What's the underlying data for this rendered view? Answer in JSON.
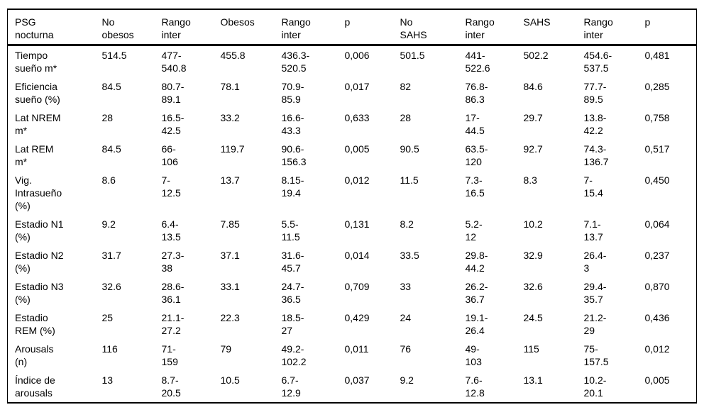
{
  "colors": {
    "background": "#ffffff",
    "text": "#000000",
    "border": "#000000"
  },
  "table": {
    "name": "PSG nocturna",
    "columns": [
      "PSG\nnocturna",
      "No\nobesos",
      "Rango\ninter",
      "Obesos",
      "Rango\ninter",
      "p",
      "No\nSAHS",
      "Rango\ninter",
      "SAHS",
      "Rango\ninter",
      "p"
    ],
    "rows": [
      [
        "Tiempo\nsueño m*",
        "514.5",
        "477-\n540.8",
        "455.8",
        "436.3-\n520.5",
        "0,006",
        "501.5",
        "441-\n522.6",
        "502.2",
        "454.6-\n537.5",
        "0,481"
      ],
      [
        "Eficiencia\nsueño (%)",
        "84.5",
        "80.7-\n89.1",
        "78.1",
        "70.9-\n85.9",
        "0,017",
        "82",
        "76.8-\n86.3",
        "84.6",
        "77.7-\n89.5",
        "0,285"
      ],
      [
        "Lat NREM\nm*",
        "28",
        "16.5-\n42.5",
        "33.2",
        "16.6-\n43.3",
        "0,633",
        "28",
        "17-\n44.5",
        "29.7",
        "13.8-\n42.2",
        "0,758"
      ],
      [
        "Lat REM\nm*",
        "84.5",
        "66-\n106",
        "119.7",
        "90.6-\n156.3",
        "0,005",
        "90.5",
        "63.5-\n120",
        "92.7",
        "74.3-\n136.7",
        "0,517"
      ],
      [
        "Vig.\nIntrasueño\n(%)",
        "8.6",
        "7-\n12.5",
        "13.7",
        "8.15-\n19.4",
        "0,012",
        "11.5",
        "7.3-\n16.5",
        "8.3",
        "7-\n15.4",
        "0,450"
      ],
      [
        "Estadio N1\n(%)",
        "9.2",
        "6.4-\n13.5",
        "7.85",
        "5.5-\n11.5",
        "0,131",
        "8.2",
        "5.2-\n12",
        "10.2",
        "7.1-\n13.7",
        "0,064"
      ],
      [
        "Estadio N2\n(%)",
        "31.7",
        "27.3-\n38",
        "37.1",
        "31.6-\n45.7",
        "0,014",
        "33.5",
        "29.8-\n44.2",
        "32.9",
        "26.4-\n3",
        "0,237"
      ],
      [
        "Estadio N3\n(%)",
        "32.6",
        "28.6-\n36.1",
        "33.1",
        "24.7-\n36.5",
        "0,709",
        "33",
        "26.2-\n36.7",
        "32.6",
        "29.4-\n35.7",
        "0,870"
      ],
      [
        "Estadio\nREM (%)",
        "25",
        "21.1-\n27.2",
        "22.3",
        "18.5-\n27",
        "0,429",
        "24",
        "19.1-\n26.4",
        "24.5",
        "21.2-\n29",
        "0,436"
      ],
      [
        "Arousals\n(n)",
        "116",
        "71-\n159",
        "79",
        "49.2-\n102.2",
        "0,011",
        "76",
        "49-\n103",
        "115",
        "75-\n157.5",
        "0,012"
      ],
      [
        "Índice de\narousals",
        "13",
        "8.7-\n20.5",
        "10.5",
        "6.7-\n12.9",
        "0,037",
        "9.2",
        "7.6-\n12.8",
        "13.1",
        "10.2-\n20.1",
        "0,005"
      ]
    ]
  }
}
